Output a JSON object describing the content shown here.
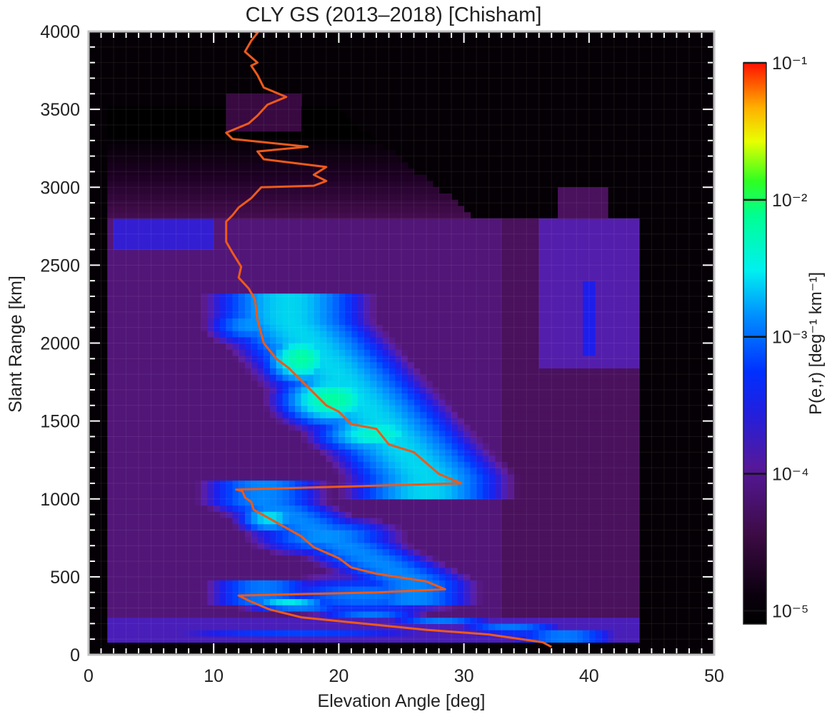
{
  "chart_data": {
    "type": "heatmap",
    "title": "CLY GS (2013–2018) [Chisham]",
    "xlabel": "Elevation Angle [deg]",
    "ylabel": "Slant Range [km]",
    "xlim": [
      0,
      50
    ],
    "ylim": [
      0,
      4000
    ],
    "x_ticks": [
      "0",
      "10",
      "20",
      "30",
      "40",
      "50"
    ],
    "y_ticks": [
      "0",
      "500",
      "1000",
      "1500",
      "2000",
      "2500",
      "3000",
      "3500",
      "4000"
    ],
    "colorbar": {
      "label": "P(e,r) [deg⁻¹ km⁻¹]",
      "scale": "log",
      "range": [
        8e-06,
        0.1
      ],
      "ticks": [
        {
          "value": 0.1,
          "label": "10⁻¹"
        },
        {
          "value": 0.01,
          "label": "10⁻²"
        },
        {
          "value": 0.001,
          "label": "10⁻³"
        },
        {
          "value": 0.0001,
          "label": "10⁻⁴"
        },
        {
          "value": 1e-05,
          "label": "10⁻⁵"
        }
      ]
    },
    "probability_features": [
      {
        "elevation": 5,
        "range": 130,
        "level": -4.0,
        "sx": 3.5,
        "sy": 12
      },
      {
        "elevation": 17,
        "range": 130,
        "level": -3.5,
        "sx": 11,
        "sy": 14
      },
      {
        "elevation": 35,
        "range": 130,
        "level": -3.6,
        "sx": 6,
        "sy": 14
      },
      {
        "elevation": 22,
        "range": 380,
        "level": -3.6,
        "sx": 7,
        "sy": 120
      },
      {
        "elevation": 16,
        "range": 340,
        "level": -3.3,
        "sx": 3,
        "sy": 40
      },
      {
        "elevation": 14.5,
        "range": 880,
        "level": -3.3,
        "sx": 2.2,
        "sy": 90
      },
      {
        "elevation": 19,
        "range": 760,
        "level": -3.5,
        "sx": 5,
        "sy": 110
      },
      {
        "elevation": 17,
        "range": 1900,
        "level": -3.1,
        "sx": 2.5,
        "sy": 150
      },
      {
        "elevation": 19.5,
        "range": 1640,
        "level": -3.1,
        "sx": 3.5,
        "sy": 150
      },
      {
        "elevation": 23,
        "range": 1420,
        "level": -3.2,
        "sx": 4,
        "sy": 120
      },
      {
        "elevation": 27,
        "range": 1220,
        "level": -3.6,
        "sx": 3,
        "sy": 80
      },
      {
        "elevation": 13,
        "range": 2120,
        "level": -3.5,
        "sx": 3,
        "sy": 120
      }
    ],
    "series": [
      {
        "values": [
          {
            "x": 37.0,
            "y": 50
          },
          {
            "x": 36.3,
            "y": 80
          },
          {
            "x": 32.0,
            "y": 130
          },
          {
            "x": 27.0,
            "y": 160
          },
          {
            "x": 22.0,
            "y": 200
          },
          {
            "x": 17.0,
            "y": 240
          },
          {
            "x": 14.5,
            "y": 290
          },
          {
            "x": 13.0,
            "y": 340
          },
          {
            "x": 12.0,
            "y": 380
          },
          {
            "x": 23.0,
            "y": 400
          },
          {
            "x": 28.5,
            "y": 420
          },
          {
            "x": 27.0,
            "y": 470
          },
          {
            "x": 23.0,
            "y": 520
          },
          {
            "x": 21.0,
            "y": 560
          },
          {
            "x": 20.0,
            "y": 620
          },
          {
            "x": 18.0,
            "y": 690
          },
          {
            "x": 17.0,
            "y": 760
          },
          {
            "x": 15.0,
            "y": 850
          },
          {
            "x": 13.2,
            "y": 930
          },
          {
            "x": 13.0,
            "y": 980
          },
          {
            "x": 12.5,
            "y": 1010
          },
          {
            "x": 12.3,
            "y": 1050
          },
          {
            "x": 11.8,
            "y": 1060
          },
          {
            "x": 29.8,
            "y": 1100
          },
          {
            "x": 28.0,
            "y": 1160
          },
          {
            "x": 27.0,
            "y": 1230
          },
          {
            "x": 26.0,
            "y": 1300
          },
          {
            "x": 24.0,
            "y": 1350
          },
          {
            "x": 23.0,
            "y": 1450
          },
          {
            "x": 21.0,
            "y": 1480
          },
          {
            "x": 20.0,
            "y": 1560
          },
          {
            "x": 19.0,
            "y": 1600
          },
          {
            "x": 18.0,
            "y": 1680
          },
          {
            "x": 17.0,
            "y": 1760
          },
          {
            "x": 16.0,
            "y": 1840
          },
          {
            "x": 15.0,
            "y": 1900
          },
          {
            "x": 14.0,
            "y": 2000
          },
          {
            "x": 13.5,
            "y": 2150
          },
          {
            "x": 13.3,
            "y": 2280
          },
          {
            "x": 12.8,
            "y": 2350
          },
          {
            "x": 12.0,
            "y": 2420
          },
          {
            "x": 12.2,
            "y": 2490
          },
          {
            "x": 11.5,
            "y": 2580
          },
          {
            "x": 11.0,
            "y": 2650
          },
          {
            "x": 11.0,
            "y": 2780
          },
          {
            "x": 11.5,
            "y": 2820
          },
          {
            "x": 12.0,
            "y": 2870
          },
          {
            "x": 13.0,
            "y": 2930
          },
          {
            "x": 13.8,
            "y": 3000
          },
          {
            "x": 18.0,
            "y": 3010
          },
          {
            "x": 19.0,
            "y": 3040
          },
          {
            "x": 18.0,
            "y": 3080
          },
          {
            "x": 19.0,
            "y": 3130
          },
          {
            "x": 14.0,
            "y": 3180
          },
          {
            "x": 13.5,
            "y": 3230
          },
          {
            "x": 17.5,
            "y": 3260
          },
          {
            "x": 11.5,
            "y": 3310
          },
          {
            "x": 11.0,
            "y": 3350
          },
          {
            "x": 12.8,
            "y": 3410
          },
          {
            "x": 13.5,
            "y": 3460
          },
          {
            "x": 14.3,
            "y": 3530
          },
          {
            "x": 15.8,
            "y": 3580
          },
          {
            "x": 14.0,
            "y": 3640
          },
          {
            "x": 13.5,
            "y": 3720
          },
          {
            "x": 13.0,
            "y": 3780
          },
          {
            "x": 13.5,
            "y": 3800
          },
          {
            "x": 12.5,
            "y": 3870
          },
          {
            "x": 13.0,
            "y": 3940
          },
          {
            "x": 13.5,
            "y": 3990
          },
          {
            "x": 12.5,
            "y": 4030
          }
        ],
        "color": "#ee5a1a"
      }
    ],
    "grid": true,
    "legend": "none"
  },
  "colors": {
    "plot_background": "#050005",
    "axis_frame": "#c0c0c0",
    "tick_marks": "#ffffff",
    "text": "#222222",
    "line": "#ee5a1a"
  }
}
